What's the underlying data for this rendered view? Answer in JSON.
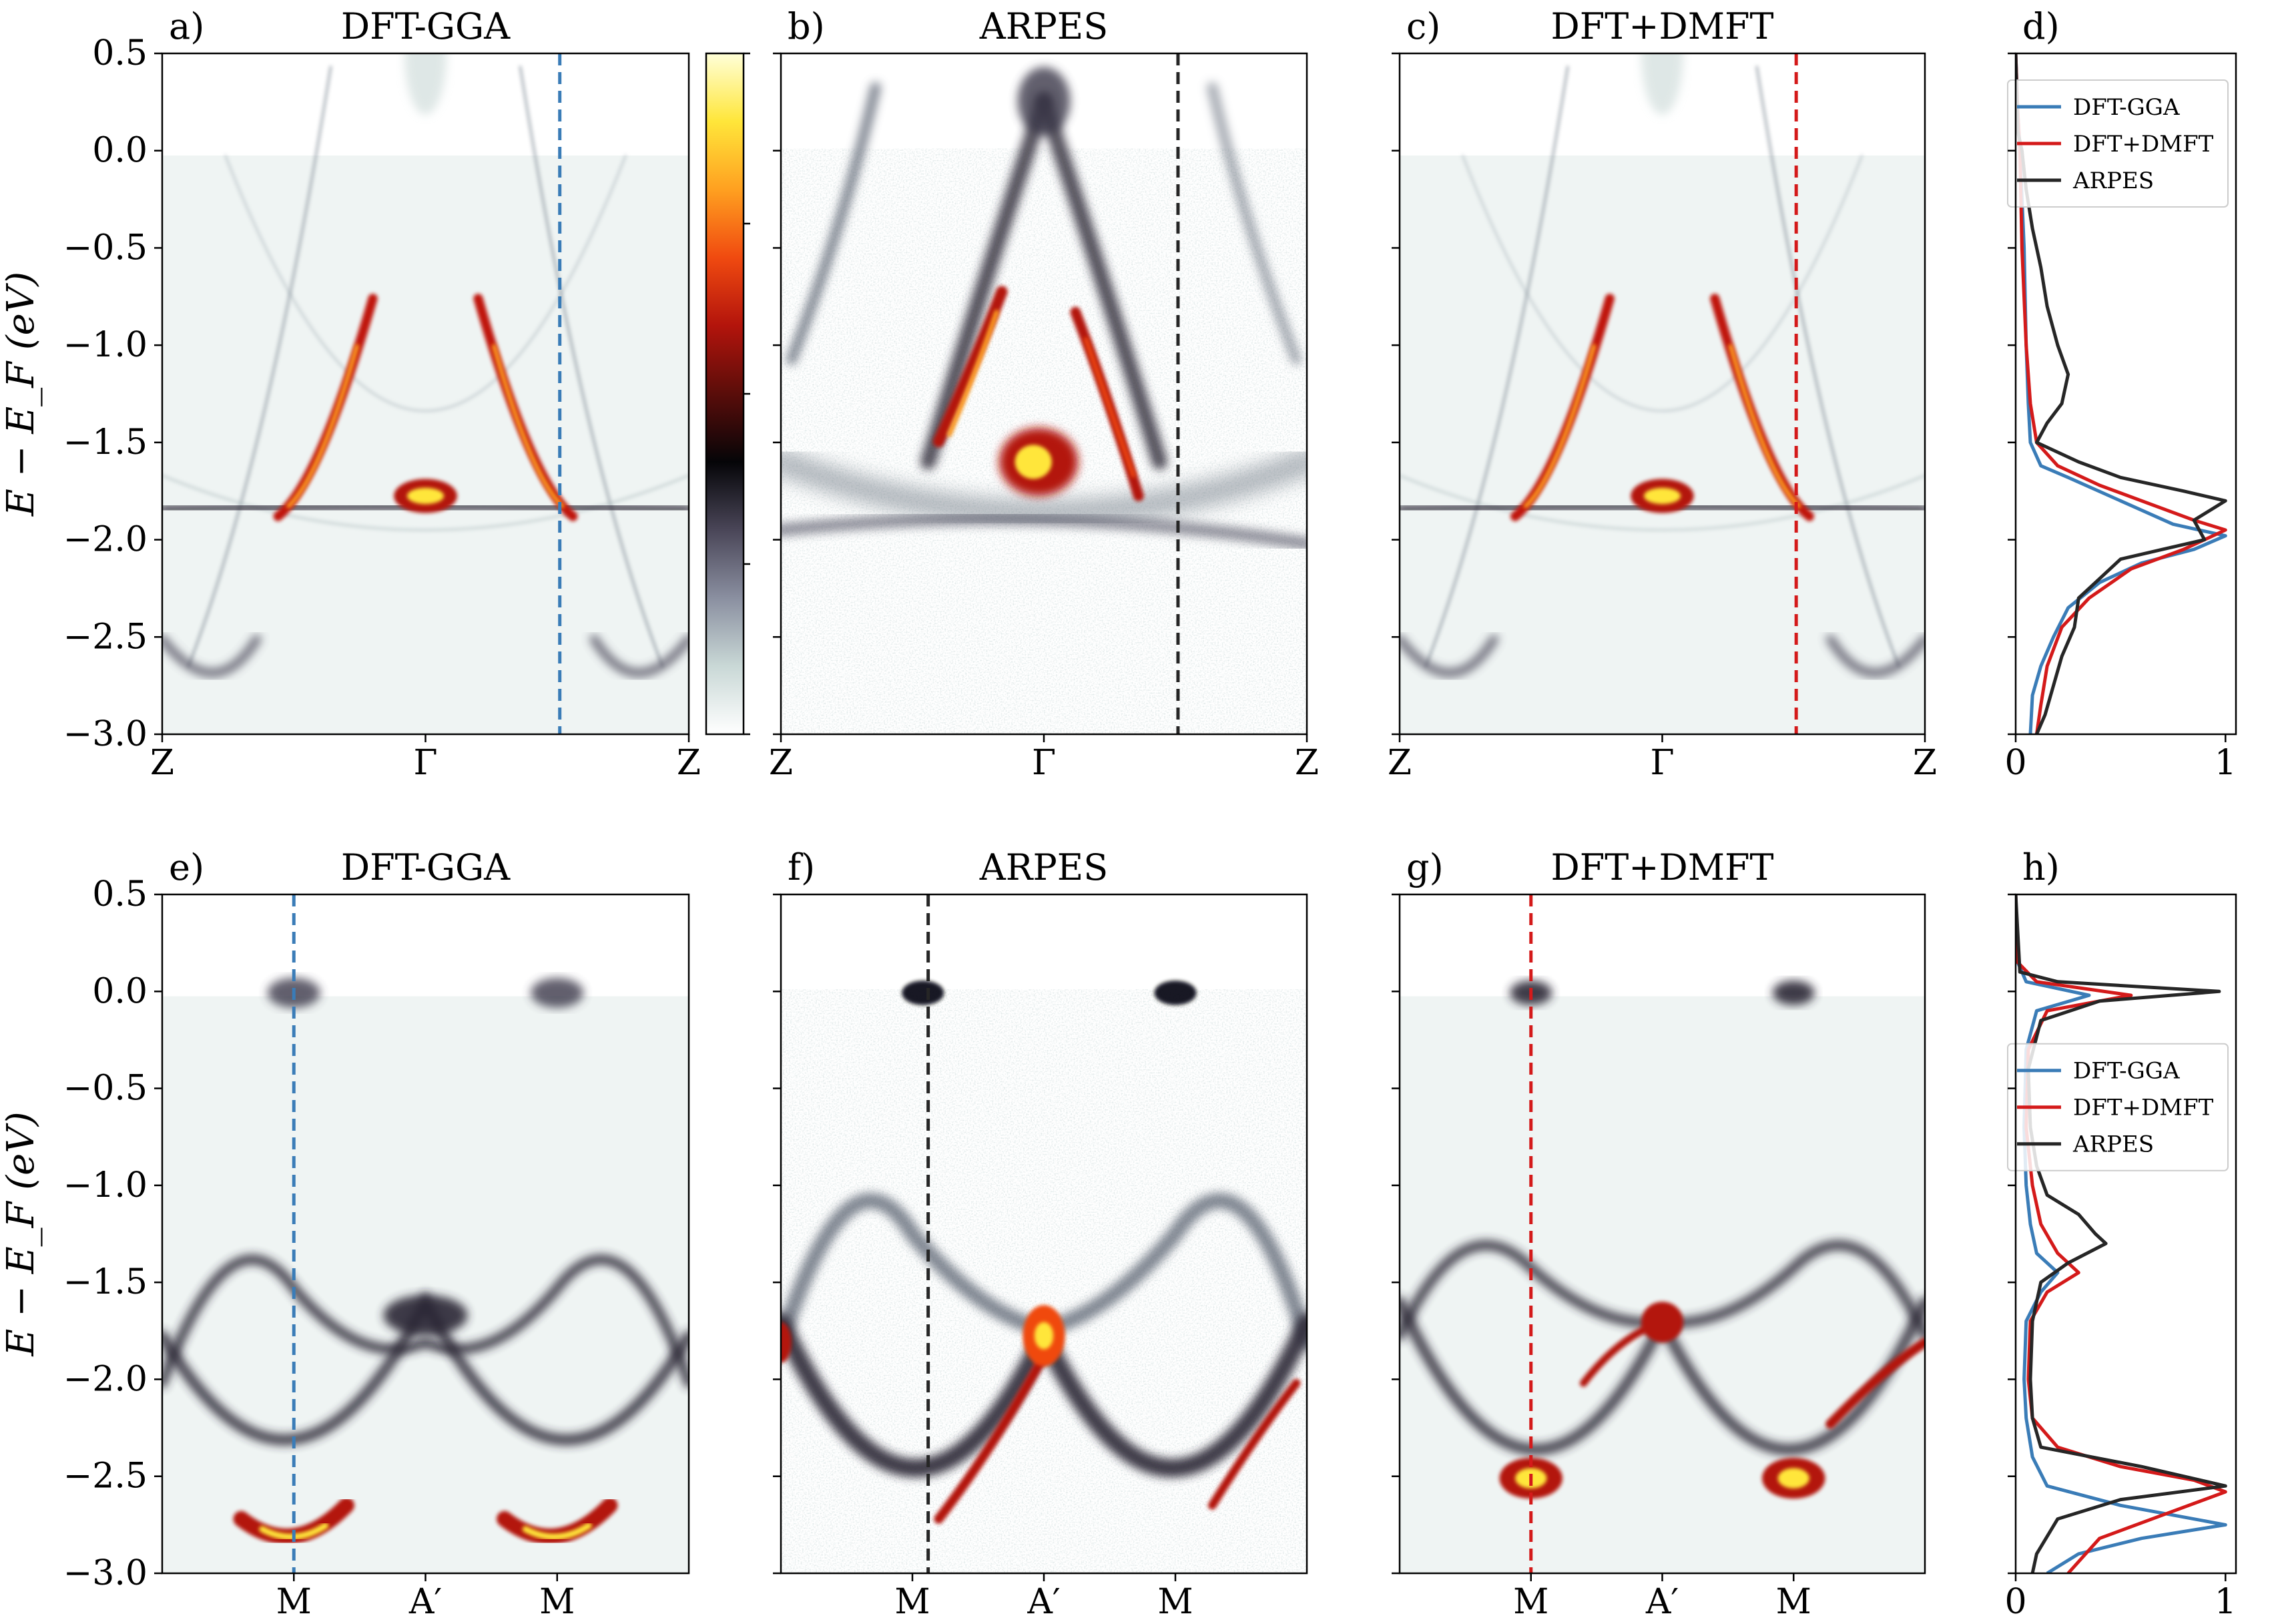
{
  "ylabel": "E − E_F (eV)",
  "colorbar": {
    "stops": [
      "#ffffff",
      "#c9d8d6",
      "#8a8fa0",
      "#4a4658",
      "#050508",
      "#5a0d0a",
      "#b3140c",
      "#f04a10",
      "#ffa020",
      "#ffe63a",
      "#ffffd8"
    ]
  },
  "colors": {
    "gga": "#3a7cb7",
    "dmft": "#d41a1a",
    "arpes": "#262626"
  },
  "chart_data": [
    {
      "type": "heatmap",
      "panel": "a)",
      "title": "DFT-GGA",
      "ylim": [
        -3.0,
        0.5
      ],
      "yticks": [
        "0.5",
        "0.0",
        "−0.5",
        "−1.0",
        "−1.5",
        "−2.0",
        "−2.5",
        "−3.0"
      ],
      "xticks": [
        "Z",
        "Γ",
        "Z"
      ],
      "cut_line_color": "#3a7cb7"
    },
    {
      "type": "heatmap",
      "panel": "b)",
      "title": "ARPES",
      "ylim": [
        -3.0,
        0.5
      ],
      "xticks": [
        "Z",
        "Γ",
        "Z"
      ],
      "cut_line_color": "#262626"
    },
    {
      "type": "heatmap",
      "panel": "c)",
      "title": "DFT+DMFT",
      "ylim": [
        -3.0,
        0.5
      ],
      "xticks": [
        "Z",
        "Γ",
        "Z"
      ],
      "cut_line_color": "#d41a1a"
    },
    {
      "type": "line",
      "panel": "d)",
      "xticks": [
        "0",
        "1"
      ],
      "xlim": [
        0,
        1.05
      ],
      "ylim": [
        -3.0,
        0.5
      ],
      "legend_loc": "upper-right",
      "series": [
        {
          "name": "DFT-GGA",
          "color": "#3a7cb7",
          "points": [
            [
              0.0,
              0.5
            ],
            [
              0.01,
              0.2
            ],
            [
              0.02,
              0.0
            ],
            [
              0.04,
              -0.5
            ],
            [
              0.05,
              -1.0
            ],
            [
              0.06,
              -1.3
            ],
            [
              0.07,
              -1.5
            ],
            [
              0.12,
              -1.62
            ],
            [
              0.25,
              -1.68
            ],
            [
              0.5,
              -1.8
            ],
            [
              0.75,
              -1.92
            ],
            [
              1.0,
              -1.98
            ],
            [
              0.85,
              -2.05
            ],
            [
              0.6,
              -2.12
            ],
            [
              0.4,
              -2.22
            ],
            [
              0.25,
              -2.35
            ],
            [
              0.18,
              -2.5
            ],
            [
              0.12,
              -2.65
            ],
            [
              0.08,
              -2.8
            ],
            [
              0.07,
              -3.0
            ]
          ]
        },
        {
          "name": "DFT+DMFT",
          "color": "#d41a1a",
          "points": [
            [
              0.0,
              0.5
            ],
            [
              0.01,
              0.2
            ],
            [
              0.02,
              0.0
            ],
            [
              0.03,
              -0.5
            ],
            [
              0.05,
              -1.0
            ],
            [
              0.07,
              -1.3
            ],
            [
              0.1,
              -1.5
            ],
            [
              0.2,
              -1.62
            ],
            [
              0.4,
              -1.72
            ],
            [
              0.65,
              -1.82
            ],
            [
              0.85,
              -1.9
            ],
            [
              1.0,
              -1.95
            ],
            [
              0.8,
              -2.05
            ],
            [
              0.55,
              -2.15
            ],
            [
              0.35,
              -2.3
            ],
            [
              0.22,
              -2.45
            ],
            [
              0.15,
              -2.65
            ],
            [
              0.12,
              -2.85
            ],
            [
              0.1,
              -3.0
            ]
          ]
        },
        {
          "name": "ARPES",
          "color": "#262626",
          "points": [
            [
              0.0,
              0.5
            ],
            [
              0.01,
              0.1
            ],
            [
              0.03,
              0.0
            ],
            [
              0.05,
              -0.2
            ],
            [
              0.08,
              -0.4
            ],
            [
              0.12,
              -0.6
            ],
            [
              0.15,
              -0.8
            ],
            [
              0.2,
              -1.0
            ],
            [
              0.25,
              -1.15
            ],
            [
              0.22,
              -1.3
            ],
            [
              0.15,
              -1.4
            ],
            [
              0.1,
              -1.5
            ],
            [
              0.3,
              -1.6
            ],
            [
              0.5,
              -1.68
            ],
            [
              0.8,
              -1.75
            ],
            [
              1.0,
              -1.8
            ],
            [
              0.85,
              -1.9
            ],
            [
              0.9,
              -2.0
            ],
            [
              0.7,
              -2.05
            ],
            [
              0.5,
              -2.1
            ],
            [
              0.4,
              -2.2
            ],
            [
              0.3,
              -2.3
            ],
            [
              0.28,
              -2.45
            ],
            [
              0.22,
              -2.6
            ],
            [
              0.18,
              -2.75
            ],
            [
              0.14,
              -2.9
            ],
            [
              0.1,
              -3.0
            ]
          ]
        }
      ]
    },
    {
      "type": "heatmap",
      "panel": "e)",
      "title": "DFT-GGA",
      "ylim": [
        -3.0,
        0.5
      ],
      "yticks": [
        "0.5",
        "0.0",
        "−0.5",
        "−1.0",
        "−1.5",
        "−2.0",
        "−2.5",
        "−3.0"
      ],
      "xticks": [
        "M",
        "A′",
        "M"
      ],
      "cut_line_color": "#3a7cb7"
    },
    {
      "type": "heatmap",
      "panel": "f)",
      "title": "ARPES",
      "ylim": [
        -3.0,
        0.5
      ],
      "xticks": [
        "M",
        "A′",
        "M"
      ],
      "cut_line_color": "#262626"
    },
    {
      "type": "heatmap",
      "panel": "g)",
      "title": "DFT+DMFT",
      "ylim": [
        -3.0,
        0.5
      ],
      "xticks": [
        "M",
        "A′",
        "M"
      ],
      "cut_line_color": "#d41a1a"
    },
    {
      "type": "line",
      "panel": "h)",
      "xticks": [
        "0",
        "1"
      ],
      "xlim": [
        0,
        1.05
      ],
      "ylim": [
        -3.0,
        0.5
      ],
      "legend_loc": "center-right",
      "series": [
        {
          "name": "DFT-GGA",
          "color": "#3a7cb7",
          "points": [
            [
              0.0,
              0.5
            ],
            [
              0.01,
              0.15
            ],
            [
              0.05,
              0.05
            ],
            [
              0.35,
              -0.02
            ],
            [
              0.1,
              -0.1
            ],
            [
              0.05,
              -0.3
            ],
            [
              0.04,
              -0.7
            ],
            [
              0.05,
              -1.0
            ],
            [
              0.07,
              -1.2
            ],
            [
              0.1,
              -1.35
            ],
            [
              0.2,
              -1.45
            ],
            [
              0.12,
              -1.55
            ],
            [
              0.05,
              -1.7
            ],
            [
              0.04,
              -2.0
            ],
            [
              0.05,
              -2.2
            ],
            [
              0.08,
              -2.4
            ],
            [
              0.15,
              -2.55
            ],
            [
              0.5,
              -2.65
            ],
            [
              1.0,
              -2.75
            ],
            [
              0.6,
              -2.82
            ],
            [
              0.3,
              -2.9
            ],
            [
              0.15,
              -3.0
            ]
          ]
        },
        {
          "name": "DFT+DMFT",
          "color": "#d41a1a",
          "points": [
            [
              0.0,
              0.5
            ],
            [
              0.01,
              0.15
            ],
            [
              0.1,
              0.05
            ],
            [
              0.55,
              -0.02
            ],
            [
              0.15,
              -0.1
            ],
            [
              0.06,
              -0.3
            ],
            [
              0.05,
              -0.7
            ],
            [
              0.08,
              -1.0
            ],
            [
              0.12,
              -1.2
            ],
            [
              0.2,
              -1.35
            ],
            [
              0.3,
              -1.45
            ],
            [
              0.15,
              -1.55
            ],
            [
              0.07,
              -1.7
            ],
            [
              0.06,
              -2.0
            ],
            [
              0.08,
              -2.2
            ],
            [
              0.2,
              -2.35
            ],
            [
              0.5,
              -2.45
            ],
            [
              0.85,
              -2.52
            ],
            [
              1.0,
              -2.58
            ],
            [
              0.7,
              -2.7
            ],
            [
              0.4,
              -2.82
            ],
            [
              0.25,
              -3.0
            ]
          ]
        },
        {
          "name": "ARPES",
          "color": "#262626",
          "points": [
            [
              0.0,
              0.5
            ],
            [
              0.02,
              0.1
            ],
            [
              0.2,
              0.05
            ],
            [
              0.97,
              0.0
            ],
            [
              0.4,
              -0.05
            ],
            [
              0.12,
              -0.15
            ],
            [
              0.06,
              -0.4
            ],
            [
              0.07,
              -0.7
            ],
            [
              0.1,
              -0.9
            ],
            [
              0.15,
              -1.05
            ],
            [
              0.3,
              -1.15
            ],
            [
              0.38,
              -1.25
            ],
            [
              0.43,
              -1.3
            ],
            [
              0.25,
              -1.4
            ],
            [
              0.12,
              -1.5
            ],
            [
              0.08,
              -1.7
            ],
            [
              0.07,
              -2.0
            ],
            [
              0.08,
              -2.2
            ],
            [
              0.12,
              -2.35
            ],
            [
              0.6,
              -2.45
            ],
            [
              1.0,
              -2.55
            ],
            [
              0.5,
              -2.62
            ],
            [
              0.2,
              -2.72
            ],
            [
              0.1,
              -2.9
            ],
            [
              0.08,
              -3.0
            ]
          ]
        }
      ]
    }
  ]
}
